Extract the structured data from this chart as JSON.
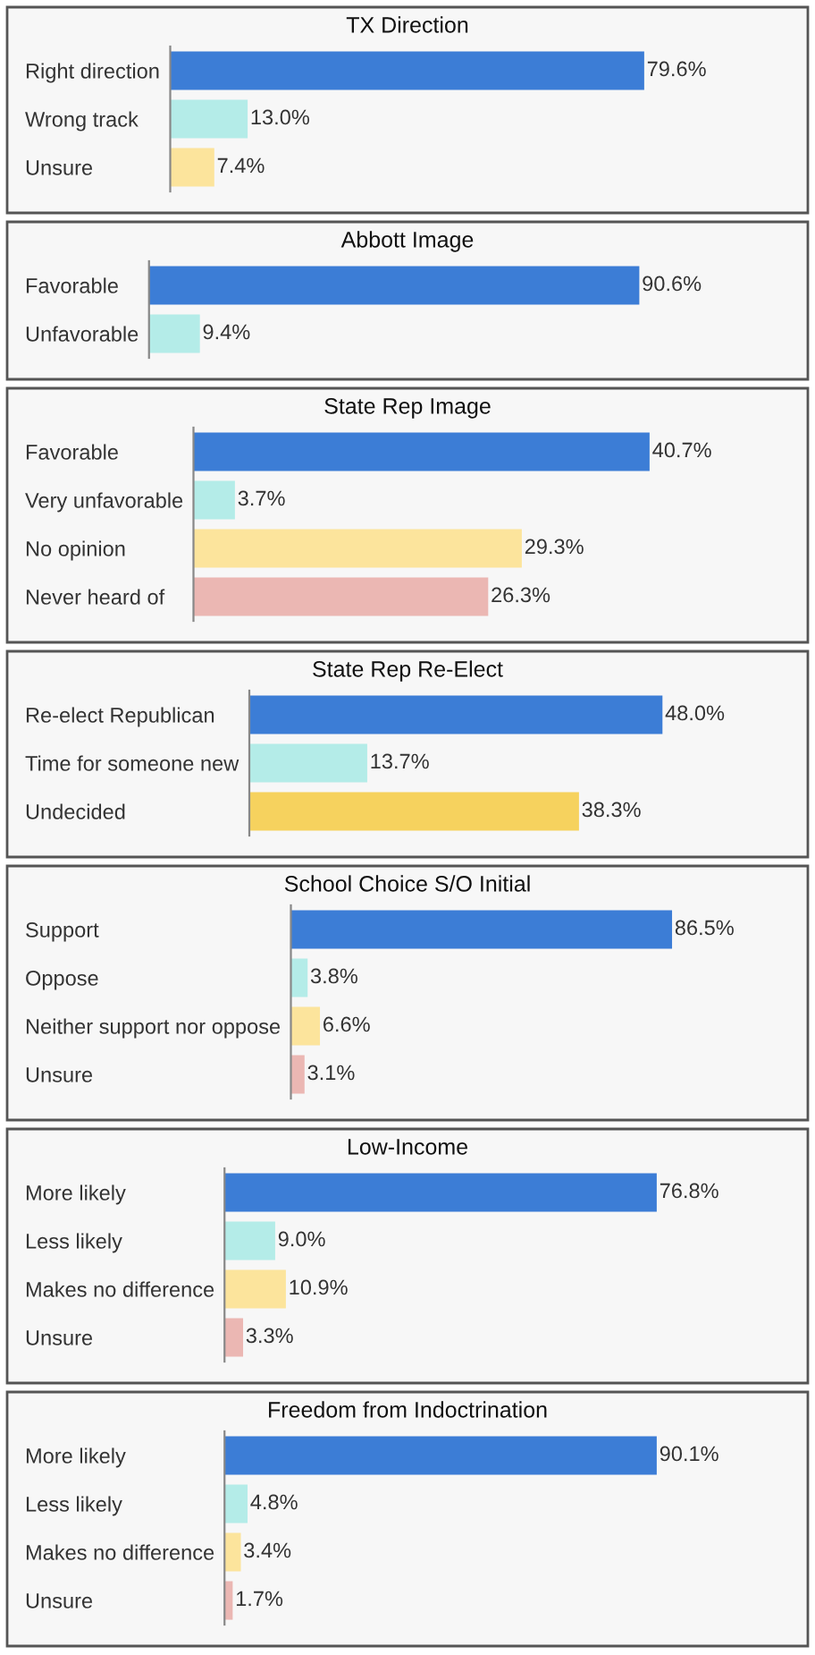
{
  "chart_data": [
    {
      "type": "bar",
      "orientation": "horizontal",
      "tick_labels": "y",
      "title": "TX Direction",
      "categories": [
        "Right direction",
        "Wrong track",
        "Unsure"
      ],
      "values": [
        79.6,
        13.0,
        7.4
      ],
      "value_labels": [
        "79.6%",
        "13.0%",
        "7.4%"
      ],
      "colors": [
        "#3c7dd6",
        "#b4ece8",
        "#fce49c"
      ]
    },
    {
      "type": "bar",
      "orientation": "horizontal",
      "tick_labels": "y",
      "title": "Abbott Image",
      "categories": [
        "Favorable",
        "Unfavorable"
      ],
      "values": [
        90.6,
        9.4
      ],
      "value_labels": [
        "90.6%",
        "9.4%"
      ],
      "colors": [
        "#3c7dd6",
        "#b4ece8"
      ]
    },
    {
      "type": "bar",
      "orientation": "horizontal",
      "tick_labels": "y",
      "title": "State Rep Image",
      "categories": [
        "Favorable",
        "Very unfavorable",
        "No opinion",
        "Never heard of"
      ],
      "values": [
        40.7,
        3.7,
        29.3,
        26.3
      ],
      "value_labels": [
        "40.7%",
        "3.7%",
        "29.3%",
        "26.3%"
      ],
      "colors": [
        "#3c7dd6",
        "#b4ece8",
        "#fce49c",
        "#ebb7b3"
      ]
    },
    {
      "type": "bar",
      "orientation": "horizontal",
      "tick_labels": "y",
      "title": "State Rep Re-Elect",
      "categories": [
        "Re-elect Republican",
        "Time for someone new",
        "Undecided"
      ],
      "values": [
        48.0,
        13.7,
        38.3
      ],
      "value_labels": [
        "48.0%",
        "13.7%",
        "38.3%"
      ],
      "colors": [
        "#3c7dd6",
        "#b4ece8",
        "#f6d25e"
      ]
    },
    {
      "type": "bar",
      "orientation": "horizontal",
      "tick_labels": "y",
      "title": "School Choice S/O Initial",
      "categories": [
        "Support",
        "Oppose",
        "Neither support nor oppose",
        "Unsure"
      ],
      "values": [
        86.5,
        3.8,
        6.6,
        3.1
      ],
      "value_labels": [
        "86.5%",
        "3.8%",
        "6.6%",
        "3.1%"
      ],
      "colors": [
        "#3c7dd6",
        "#b4ece8",
        "#fce49c",
        "#ebb7b3"
      ]
    },
    {
      "type": "bar",
      "orientation": "horizontal",
      "tick_labels": "y",
      "title": "Low-Income",
      "categories": [
        "More likely",
        "Less likely",
        "Makes no difference",
        "Unsure"
      ],
      "values": [
        76.8,
        9.0,
        10.9,
        3.3
      ],
      "value_labels": [
        "76.8%",
        "9.0%",
        "10.9%",
        "3.3%"
      ],
      "colors": [
        "#3c7dd6",
        "#b4ece8",
        "#fce49c",
        "#ebb7b3"
      ]
    },
    {
      "type": "bar",
      "orientation": "horizontal",
      "tick_labels": "y",
      "title": "Freedom from Indoctrination",
      "categories": [
        "More likely",
        "Less likely",
        "Makes no difference",
        "Unsure"
      ],
      "values": [
        90.1,
        4.8,
        3.4,
        1.7
      ],
      "value_labels": [
        "90.1%",
        "4.8%",
        "3.4%",
        "1.7%"
      ],
      "colors": [
        "#3c7dd6",
        "#b4ece8",
        "#fce49c",
        "#ebb7b3"
      ]
    }
  ]
}
